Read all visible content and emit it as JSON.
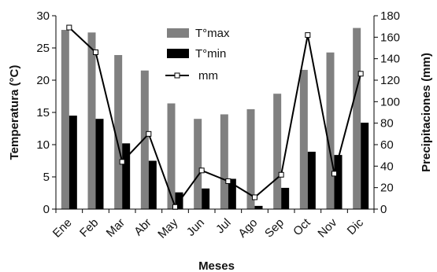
{
  "chart_data": {
    "type": "bar+line",
    "categories": [
      "Ene",
      "Feb",
      "Mar",
      "Abr",
      "May",
      "Jun",
      "Jul",
      "Ago",
      "Sep",
      "Oct",
      "Nov",
      "Dic"
    ],
    "series": [
      {
        "name": "T°max",
        "type": "bar",
        "axis": "left",
        "color": "#808080",
        "values": [
          27.8,
          27.4,
          23.9,
          21.5,
          16.4,
          14.0,
          14.7,
          15.5,
          17.9,
          21.6,
          24.3,
          28.1
        ]
      },
      {
        "name": "T°min",
        "type": "bar",
        "axis": "left",
        "color": "#000000",
        "values": [
          14.5,
          14.0,
          10.2,
          7.5,
          2.6,
          3.2,
          4.7,
          0.5,
          3.3,
          8.9,
          8.4,
          13.4
        ]
      },
      {
        "name": "mm",
        "type": "line",
        "axis": "right",
        "color": "#000000",
        "marker": "open-square",
        "values": [
          169,
          146,
          44,
          70,
          2,
          36,
          26,
          11,
          32,
          162,
          33,
          126
        ]
      }
    ],
    "xlabel": "Meses",
    "ylabel": "Temperatura (°C)",
    "y2label": "Precipitaciones (mm)",
    "ylim": [
      0,
      30
    ],
    "yticks": [
      "0",
      "5",
      "10",
      "15",
      "20",
      "25",
      "30"
    ],
    "y2lim": [
      0,
      180
    ],
    "y2ticks": [
      "0",
      "20",
      "40",
      "60",
      "80",
      "100",
      "120",
      "140",
      "160",
      "180"
    ],
    "grid": false,
    "legend_position": "top-center"
  }
}
